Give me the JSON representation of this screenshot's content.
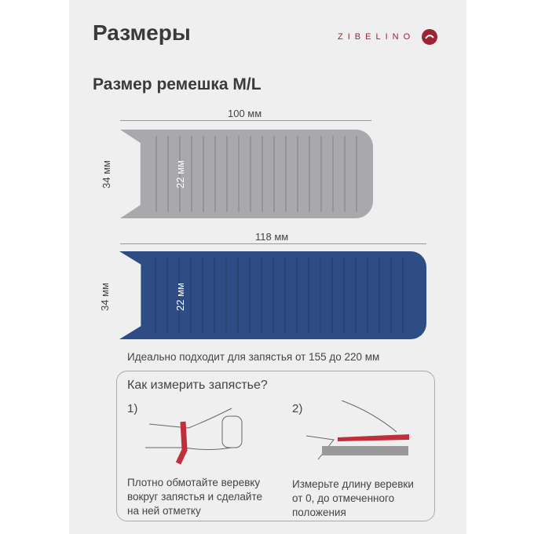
{
  "title": "Размеры",
  "subtitle": "Размер ремешка M/L",
  "logo": "ZIBELINO",
  "bands": [
    {
      "length": "100 мм",
      "width": "34 мм",
      "inner": "22 мм",
      "color": "#a9a8ad"
    },
    {
      "length": "118 мм",
      "width": "34 мм",
      "inner": "22 мм",
      "color": "#2f4d85"
    }
  ],
  "fit_note": "Идеально подходит для запястья от 155 до 220 мм",
  "howto": {
    "title": "Как измерить запястье?",
    "steps": [
      {
        "num": "1)",
        "text": "Плотно обмотайте веревку вокруг запястья и сделайте на ней отметку"
      },
      {
        "num": "2)",
        "text": "Измерьте длину веревки от 0, до отмеченного положения"
      }
    ]
  },
  "accent": "#c0303c"
}
